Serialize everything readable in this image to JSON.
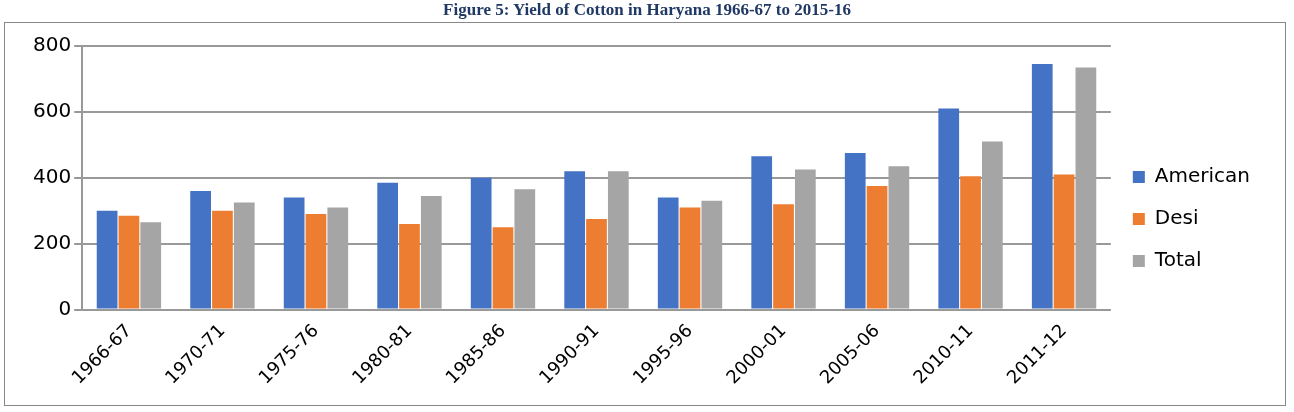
{
  "chart_data": {
    "type": "bar",
    "title": "Figure 5: Yield of Cotton in Haryana 1966-67 to 2015-16",
    "categories": [
      "1966-67",
      "1970-71",
      "1975-76",
      "1980-81",
      "1985-86",
      "1990-91",
      "1995-96",
      "2000-01",
      "2005-06",
      "2010-11",
      "2011-12"
    ],
    "series": [
      {
        "name": "American",
        "color": "#4472c4",
        "values": [
          300,
          360,
          340,
          385,
          400,
          420,
          340,
          465,
          475,
          610,
          745
        ]
      },
      {
        "name": "Desi",
        "color": "#ed7d31",
        "values": [
          285,
          300,
          290,
          260,
          250,
          275,
          310,
          320,
          375,
          405,
          410
        ]
      },
      {
        "name": "Total",
        "color": "#a5a5a5",
        "values": [
          265,
          325,
          310,
          345,
          365,
          420,
          330,
          425,
          435,
          510,
          735
        ]
      }
    ],
    "ylim": [
      0,
      800
    ],
    "yticks": [
      0,
      200,
      400,
      600,
      800
    ],
    "grid": "y",
    "legend": "right"
  }
}
